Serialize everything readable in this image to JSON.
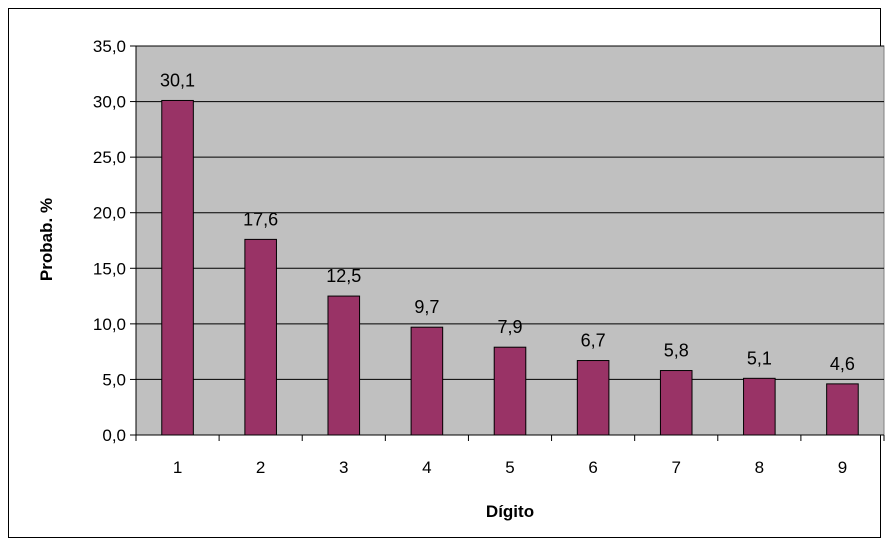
{
  "chart_data": {
    "type": "bar",
    "title": "",
    "xlabel": "Dígito",
    "ylabel": "Probab. %",
    "categories": [
      "1",
      "2",
      "3",
      "4",
      "5",
      "6",
      "7",
      "8",
      "9"
    ],
    "values": [
      30.1,
      17.6,
      12.5,
      9.7,
      7.9,
      6.7,
      5.8,
      5.1,
      4.6
    ],
    "data_labels": [
      "30,1",
      "17,6",
      "12,5",
      "9,7",
      "7,9",
      "6,7",
      "5,8",
      "5,1",
      "4,6"
    ],
    "ylim": [
      0,
      35
    ],
    "yticks": [
      0,
      5,
      10,
      15,
      20,
      25,
      30,
      35
    ],
    "ytick_labels": [
      "0,0",
      "5,0",
      "10,0",
      "15,0",
      "20,0",
      "25,0",
      "30,0",
      "35,0"
    ],
    "grid": true,
    "legend": "none",
    "colors": {
      "bar_fill": "#993366",
      "bar_stroke": "#000000",
      "plot_background": "#c0c0c0",
      "gridline": "#000000"
    }
  }
}
